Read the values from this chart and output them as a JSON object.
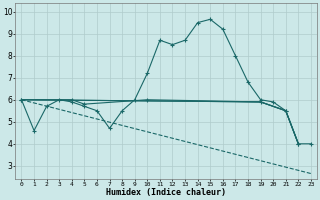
{
  "xlabel": "Humidex (Indice chaleur)",
  "bg_color": "#cce8e8",
  "grid_color": "#b0cccc",
  "line_color": "#1a6868",
  "xlim": [
    -0.5,
    23.5
  ],
  "ylim": [
    2.4,
    10.4
  ],
  "yticks": [
    3,
    4,
    5,
    6,
    7,
    8,
    9,
    10
  ],
  "xticks": [
    0,
    1,
    2,
    3,
    4,
    5,
    6,
    7,
    8,
    9,
    10,
    11,
    12,
    13,
    14,
    15,
    16,
    17,
    18,
    19,
    20,
    21,
    22,
    23
  ],
  "line_main": {
    "x": [
      0,
      1,
      2,
      3,
      4,
      5,
      6,
      7,
      8,
      9,
      10,
      11,
      12,
      13,
      14,
      15,
      16,
      17,
      18,
      19,
      20,
      21,
      22,
      23
    ],
    "y": [
      6.0,
      4.6,
      5.7,
      6.0,
      5.9,
      5.7,
      5.5,
      4.7,
      5.5,
      6.0,
      7.2,
      8.7,
      8.5,
      8.7,
      9.5,
      9.65,
      9.2,
      8.0,
      6.8,
      6.0,
      5.9,
      5.5,
      4.0,
      4.0
    ]
  },
  "line_flat1": {
    "x": [
      0,
      4,
      5,
      10,
      19,
      21,
      22
    ],
    "y": [
      6.0,
      6.0,
      5.8,
      6.0,
      5.9,
      5.5,
      4.0
    ]
  },
  "line_flat2": {
    "x": [
      0,
      19,
      21,
      22
    ],
    "y": [
      6.0,
      5.9,
      5.5,
      4.0
    ]
  },
  "line_flat3": {
    "x": [
      0,
      19,
      21,
      22
    ],
    "y": [
      6.0,
      5.9,
      5.5,
      4.0
    ]
  },
  "line_descend": {
    "x": [
      0,
      23
    ],
    "y": [
      6.0,
      2.65
    ]
  }
}
